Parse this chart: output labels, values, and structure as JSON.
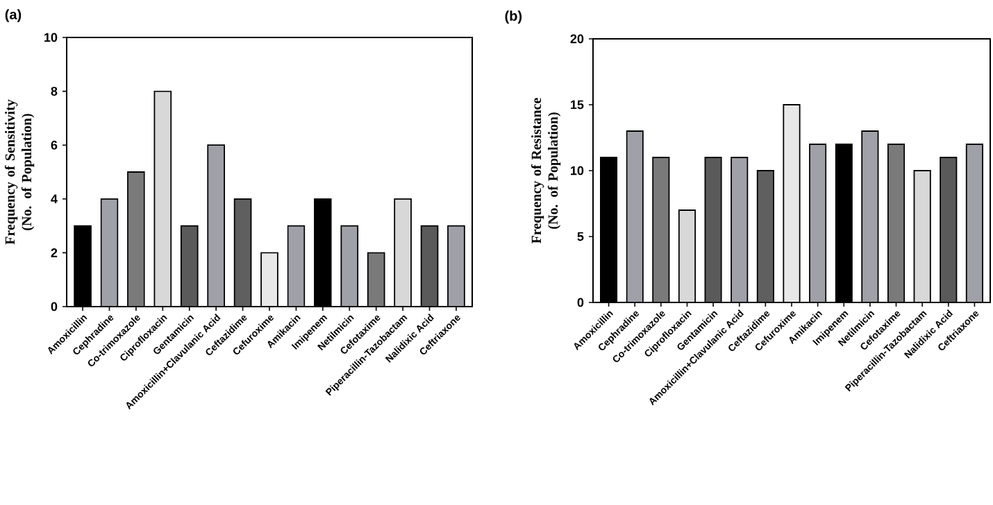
{
  "chart_data": [
    {
      "type": "bar",
      "title": "(a)",
      "ylabel": "Frequency of Sensitivity (No. of Population)",
      "categories": [
        "Amoxicillin",
        "Cephradine",
        "Co-trimoxazole",
        "Ciprofloxacin",
        "Gentamicin",
        "Amoxicillin+Clavulanic Acid",
        "Ceftazidime",
        "Cefuroxime",
        "Amikacin",
        "Imipenem",
        "Netilmicin",
        "Cefotaxime",
        "Piperacillin-Tazobactam",
        "Nalidixic Acid",
        "Ceftriaxone"
      ],
      "values": [
        3,
        4,
        5,
        8,
        3,
        6,
        4,
        2,
        3,
        4,
        3,
        2,
        4,
        3,
        3
      ],
      "colors": [
        "#000000",
        "#a0a0a8",
        "#7a7a7a",
        "#d8d8d8",
        "#5a5a5a",
        "#a0a0a8",
        "#5f5f5f",
        "#e8e8e8",
        "#a0a0a8",
        "#000000",
        "#a0a0a8",
        "#7a7a7a",
        "#d8d8d8",
        "#5a5a5a",
        "#a0a0a8"
      ],
      "ylim": [
        0,
        10
      ],
      "yticks": [
        0,
        2,
        4,
        6,
        8,
        10
      ],
      "grid": false
    },
    {
      "type": "bar",
      "title": "(b)",
      "ylabel": "Frequency of Resistance (No. of Population)",
      "categories": [
        "Amoxicillin",
        "Cephradine",
        "Co-trimoxazole",
        "Ciprofloxacin",
        "Gentamicin",
        "Amoxicillin+Clavulanic Acid",
        "Ceftazidime",
        "Cefuroxime",
        "Amikacin",
        "Imipenem",
        "Netilmicin",
        "Cefotaxime",
        "Piperacillin-Tazobactam",
        "Nalidixic Acid",
        "Ceftriaxone"
      ],
      "values": [
        11,
        13,
        11,
        7,
        11,
        11,
        10,
        15,
        12,
        12,
        13,
        12,
        10,
        11,
        12
      ],
      "colors": [
        "#000000",
        "#a0a0a8",
        "#7a7a7a",
        "#d8d8d8",
        "#5a5a5a",
        "#a0a0a8",
        "#5f5f5f",
        "#e8e8e8",
        "#a0a0a8",
        "#000000",
        "#a0a0a8",
        "#7a7a7a",
        "#d8d8d8",
        "#5a5a5a",
        "#a0a0a8"
      ],
      "ylim": [
        0,
        20
      ],
      "yticks": [
        0,
        5,
        10,
        15,
        20
      ],
      "grid": false
    }
  ]
}
